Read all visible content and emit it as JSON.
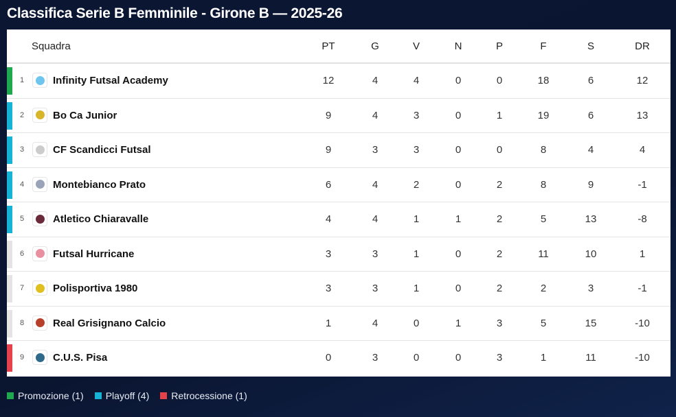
{
  "title": "Classifica Serie B Femminile - Girone B — 2025-26",
  "colors": {
    "promozione": "#1fa84f",
    "playoff": "#17b3d6",
    "none": "#e4e4e4",
    "retrocessione": "#e5414b"
  },
  "headers": {
    "team": "Squadra",
    "cols": [
      "PT",
      "G",
      "V",
      "N",
      "P",
      "F",
      "S",
      "DR"
    ]
  },
  "rows": [
    {
      "pos": "1",
      "team": "Infinity Futsal Academy",
      "zone": "promozione",
      "logo": "#6ec6ef",
      "stats": [
        "12",
        "4",
        "4",
        "0",
        "0",
        "18",
        "6",
        "12"
      ]
    },
    {
      "pos": "2",
      "team": "Bo Ca Junior",
      "zone": "playoff",
      "logo": "#d9b52a",
      "stats": [
        "9",
        "4",
        "3",
        "0",
        "1",
        "19",
        "6",
        "13"
      ]
    },
    {
      "pos": "3",
      "team": "CF Scandicci Futsal",
      "zone": "playoff",
      "logo": "#cccccc",
      "stats": [
        "9",
        "3",
        "3",
        "0",
        "0",
        "8",
        "4",
        "4"
      ]
    },
    {
      "pos": "4",
      "team": "Montebianco Prato",
      "zone": "playoff",
      "logo": "#9aa3b8",
      "stats": [
        "6",
        "4",
        "2",
        "0",
        "2",
        "8",
        "9",
        "-1"
      ]
    },
    {
      "pos": "5",
      "team": "Atletico Chiaravalle",
      "zone": "playoff",
      "logo": "#6b2a3a",
      "stats": [
        "4",
        "4",
        "1",
        "1",
        "2",
        "5",
        "13",
        "-8"
      ]
    },
    {
      "pos": "6",
      "team": "Futsal Hurricane",
      "zone": "none",
      "logo": "#e88fa0",
      "stats": [
        "3",
        "3",
        "1",
        "0",
        "2",
        "11",
        "10",
        "1"
      ]
    },
    {
      "pos": "7",
      "team": "Polisportiva 1980",
      "zone": "none",
      "logo": "#e0c020",
      "stats": [
        "3",
        "3",
        "1",
        "0",
        "2",
        "2",
        "3",
        "-1"
      ]
    },
    {
      "pos": "8",
      "team": "Real Grisignano Calcio",
      "zone": "none",
      "logo": "#b8402a",
      "stats": [
        "1",
        "4",
        "0",
        "1",
        "3",
        "5",
        "15",
        "-10"
      ]
    },
    {
      "pos": "9",
      "team": "C.U.S. Pisa",
      "zone": "retrocessione",
      "logo": "#2f6a8a",
      "stats": [
        "0",
        "3",
        "0",
        "0",
        "3",
        "1",
        "11",
        "-10"
      ]
    }
  ],
  "legend": [
    {
      "label": "Promozione (1)",
      "zone": "promozione"
    },
    {
      "label": "Playoff (4)",
      "zone": "playoff"
    },
    {
      "label": "Retrocessione (1)",
      "zone": "retrocessione"
    }
  ]
}
